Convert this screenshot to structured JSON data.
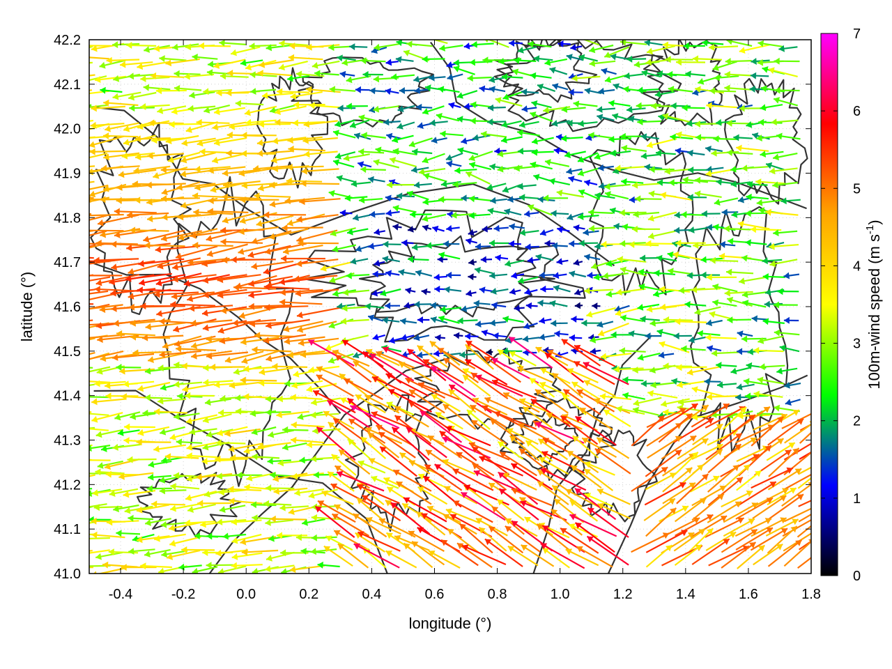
{
  "chart_data": {
    "type": "vector-field",
    "xlabel": "longitude (°)",
    "ylabel": "latitude (°)",
    "xlim": [
      -0.5,
      1.8
    ],
    "ylim": [
      41.0,
      42.2
    ],
    "xticks": [
      "-0.4",
      "-0.2",
      "0.0",
      "0.2",
      "0.4",
      "0.6",
      "0.8",
      "1.0",
      "1.2",
      "1.4",
      "1.6",
      "1.8"
    ],
    "xtick_values": [
      -0.4,
      -0.2,
      0.0,
      0.2,
      0.4,
      0.6,
      0.8,
      1.0,
      1.2,
      1.4,
      1.6,
      1.8
    ],
    "yticks": [
      "41.0",
      "41.1",
      "41.2",
      "41.3",
      "41.4",
      "41.5",
      "41.6",
      "41.7",
      "41.8",
      "41.9",
      "42.0",
      "42.1",
      "42.2"
    ],
    "ytick_values": [
      41.0,
      41.1,
      41.2,
      41.3,
      41.4,
      41.5,
      41.6,
      41.7,
      41.8,
      41.9,
      42.0,
      42.1,
      42.2
    ],
    "grid": "dotted",
    "colorbar": {
      "label": "100m-wind speed (m s",
      "label_sup": "-1",
      "label_end": ")",
      "range": [
        0,
        7
      ],
      "ticks": [
        "0",
        "1",
        "2",
        "3",
        "4",
        "5",
        "6",
        "7"
      ],
      "tick_values": [
        0,
        1,
        2,
        3,
        4,
        5,
        6,
        7
      ],
      "palette": [
        "#000000",
        "#0000ff",
        "#00ff00",
        "#ffff00",
        "#ffa500",
        "#ff0000",
        "#ff00ff"
      ]
    },
    "wind_regions": [
      {
        "region": "west, north of 41.45",
        "direction": "westward",
        "speed_range": [
          3,
          6
        ]
      },
      {
        "region": "central plateau 41.4–41.8",
        "direction": "westward",
        "speed_range": [
          0.5,
          2
        ]
      },
      {
        "region": "south-central 41.1–41.35",
        "direction": "north-westward",
        "speed_range": [
          3,
          7
        ]
      },
      {
        "region": "south-east",
        "direction": "north-eastward",
        "speed_range": [
          4,
          5.5
        ]
      },
      {
        "region": "east coast strip",
        "direction": "westward",
        "speed_range": [
          2,
          3.5
        ]
      }
    ],
    "contours": "terrain elevation isolines (dark grey)"
  }
}
